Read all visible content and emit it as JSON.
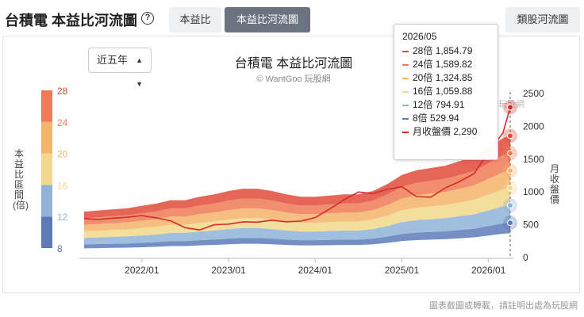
{
  "header": {
    "title": "台積電 本益比河流圖",
    "help_icon": "help-circle-icon",
    "tabs": [
      "本益比",
      "本益比河流圖"
    ],
    "active_tab": "本益比河流圖",
    "industry_button": "類股河流圖"
  },
  "controls": {
    "period_value": "近五年",
    "period_icon": "sort-caret-icon"
  },
  "chart": {
    "title": "台積電 本益比河流圖",
    "source": "© WantGoo 玩股網",
    "left_axis_label": "本益比區間(倍)",
    "right_axis_label": "月收盤價",
    "watermark_text": "玩股網"
  },
  "tooltip": {
    "date": "2026/05",
    "rows": [
      {
        "label": "28倍",
        "value": "1,854.79",
        "color": "#e04b3a"
      },
      {
        "label": "24倍",
        "value": "1,589.82",
        "color": "#ef7a55"
      },
      {
        "label": "20倍",
        "value": "1,324.85",
        "color": "#f5b46b"
      },
      {
        "label": "16倍",
        "value": "1,059.88",
        "color": "#f2d88b"
      },
      {
        "label": "12倍",
        "value": "794.91",
        "color": "#8fb4d8"
      },
      {
        "label": "8倍",
        "value": "529.94",
        "color": "#5d7ab8"
      },
      {
        "label": "月收盤價",
        "value": "2,290",
        "color": "#d42b2b"
      }
    ]
  },
  "footer_note": "圖表截圖或轉載，請註明出處為玩股網",
  "chart_data": {
    "type": "area",
    "title": "台積電 本益比河流圖",
    "subtitle": "© WantGoo 玩股網",
    "x_tick_labels": [
      "2022/01",
      "2023/01",
      "2024/01",
      "2025/01",
      "2026/01"
    ],
    "y_right_label": "月收盤價",
    "y_right_ticks": [
      0,
      500,
      1000,
      1500,
      2000,
      2500
    ],
    "y_right_range": [
      0,
      2500
    ],
    "pe_scale": {
      "label": "本益比區間(倍)",
      "ticks": [
        8,
        12,
        16,
        20,
        24,
        28
      ],
      "colors": [
        "#5d7ab8",
        "#8fb4d8",
        "#f2d88b",
        "#f5b46b",
        "#ef7a55",
        "#e04b3a"
      ]
    },
    "x": [
      2021.333,
      2021.5,
      2021.667,
      2021.833,
      2022.0,
      2022.167,
      2022.333,
      2022.5,
      2022.667,
      2022.833,
      2023.0,
      2023.167,
      2023.333,
      2023.5,
      2023.667,
      2023.833,
      2024.0,
      2024.167,
      2024.333,
      2024.5,
      2024.667,
      2024.833,
      2025.0,
      2025.167,
      2025.333,
      2025.5,
      2025.667,
      2025.833,
      2026.0,
      2026.167,
      2026.25
    ],
    "series": [
      {
        "name": "8倍",
        "values": [
          200,
          205,
          210,
          215,
          225,
          235,
          250,
          250,
          265,
          275,
          290,
          300,
          300,
          290,
          275,
          265,
          265,
          270,
          275,
          275,
          290,
          320,
          360,
          380,
          390,
          400,
          420,
          440,
          480,
          520,
          530
        ]
      },
      {
        "name": "12倍",
        "values": [
          300,
          307,
          315,
          322,
          337,
          352,
          375,
          375,
          397,
          412,
          435,
          450,
          450,
          435,
          412,
          397,
          397,
          405,
          412,
          412,
          435,
          480,
          540,
          570,
          585,
          600,
          630,
          660,
          720,
          780,
          795
        ]
      },
      {
        "name": "16倍",
        "values": [
          400,
          410,
          420,
          430,
          450,
          470,
          500,
          500,
          530,
          550,
          580,
          600,
          600,
          580,
          550,
          530,
          530,
          540,
          550,
          550,
          580,
          640,
          720,
          760,
          780,
          800,
          840,
          880,
          960,
          1040,
          1060
        ]
      },
      {
        "name": "20倍",
        "values": [
          500,
          512,
          525,
          537,
          562,
          587,
          625,
          625,
          662,
          687,
          725,
          750,
          750,
          725,
          687,
          662,
          662,
          675,
          687,
          687,
          725,
          800,
          900,
          950,
          975,
          1000,
          1050,
          1100,
          1200,
          1300,
          1325
        ]
      },
      {
        "name": "24倍",
        "values": [
          600,
          615,
          630,
          645,
          675,
          705,
          750,
          750,
          795,
          825,
          870,
          900,
          900,
          870,
          825,
          795,
          795,
          810,
          825,
          825,
          870,
          960,
          1080,
          1140,
          1170,
          1200,
          1260,
          1320,
          1440,
          1560,
          1590
        ]
      },
      {
        "name": "28倍",
        "values": [
          700,
          717,
          735,
          752,
          787,
          822,
          875,
          875,
          927,
          962,
          1015,
          1050,
          1050,
          1015,
          962,
          927,
          927,
          945,
          962,
          962,
          1015,
          1120,
          1260,
          1330,
          1365,
          1400,
          1470,
          1540,
          1680,
          1820,
          1855
        ]
      },
      {
        "name": "月收盤價",
        "values": [
          595,
          580,
          600,
          615,
          640,
          605,
          560,
          455,
          420,
          500,
          510,
          545,
          540,
          570,
          545,
          555,
          610,
          740,
          880,
          1000,
          975,
          1040,
          1080,
          930,
          920,
          1060,
          1160,
          1280,
          1610,
          1900,
          2290
        ]
      }
    ]
  }
}
